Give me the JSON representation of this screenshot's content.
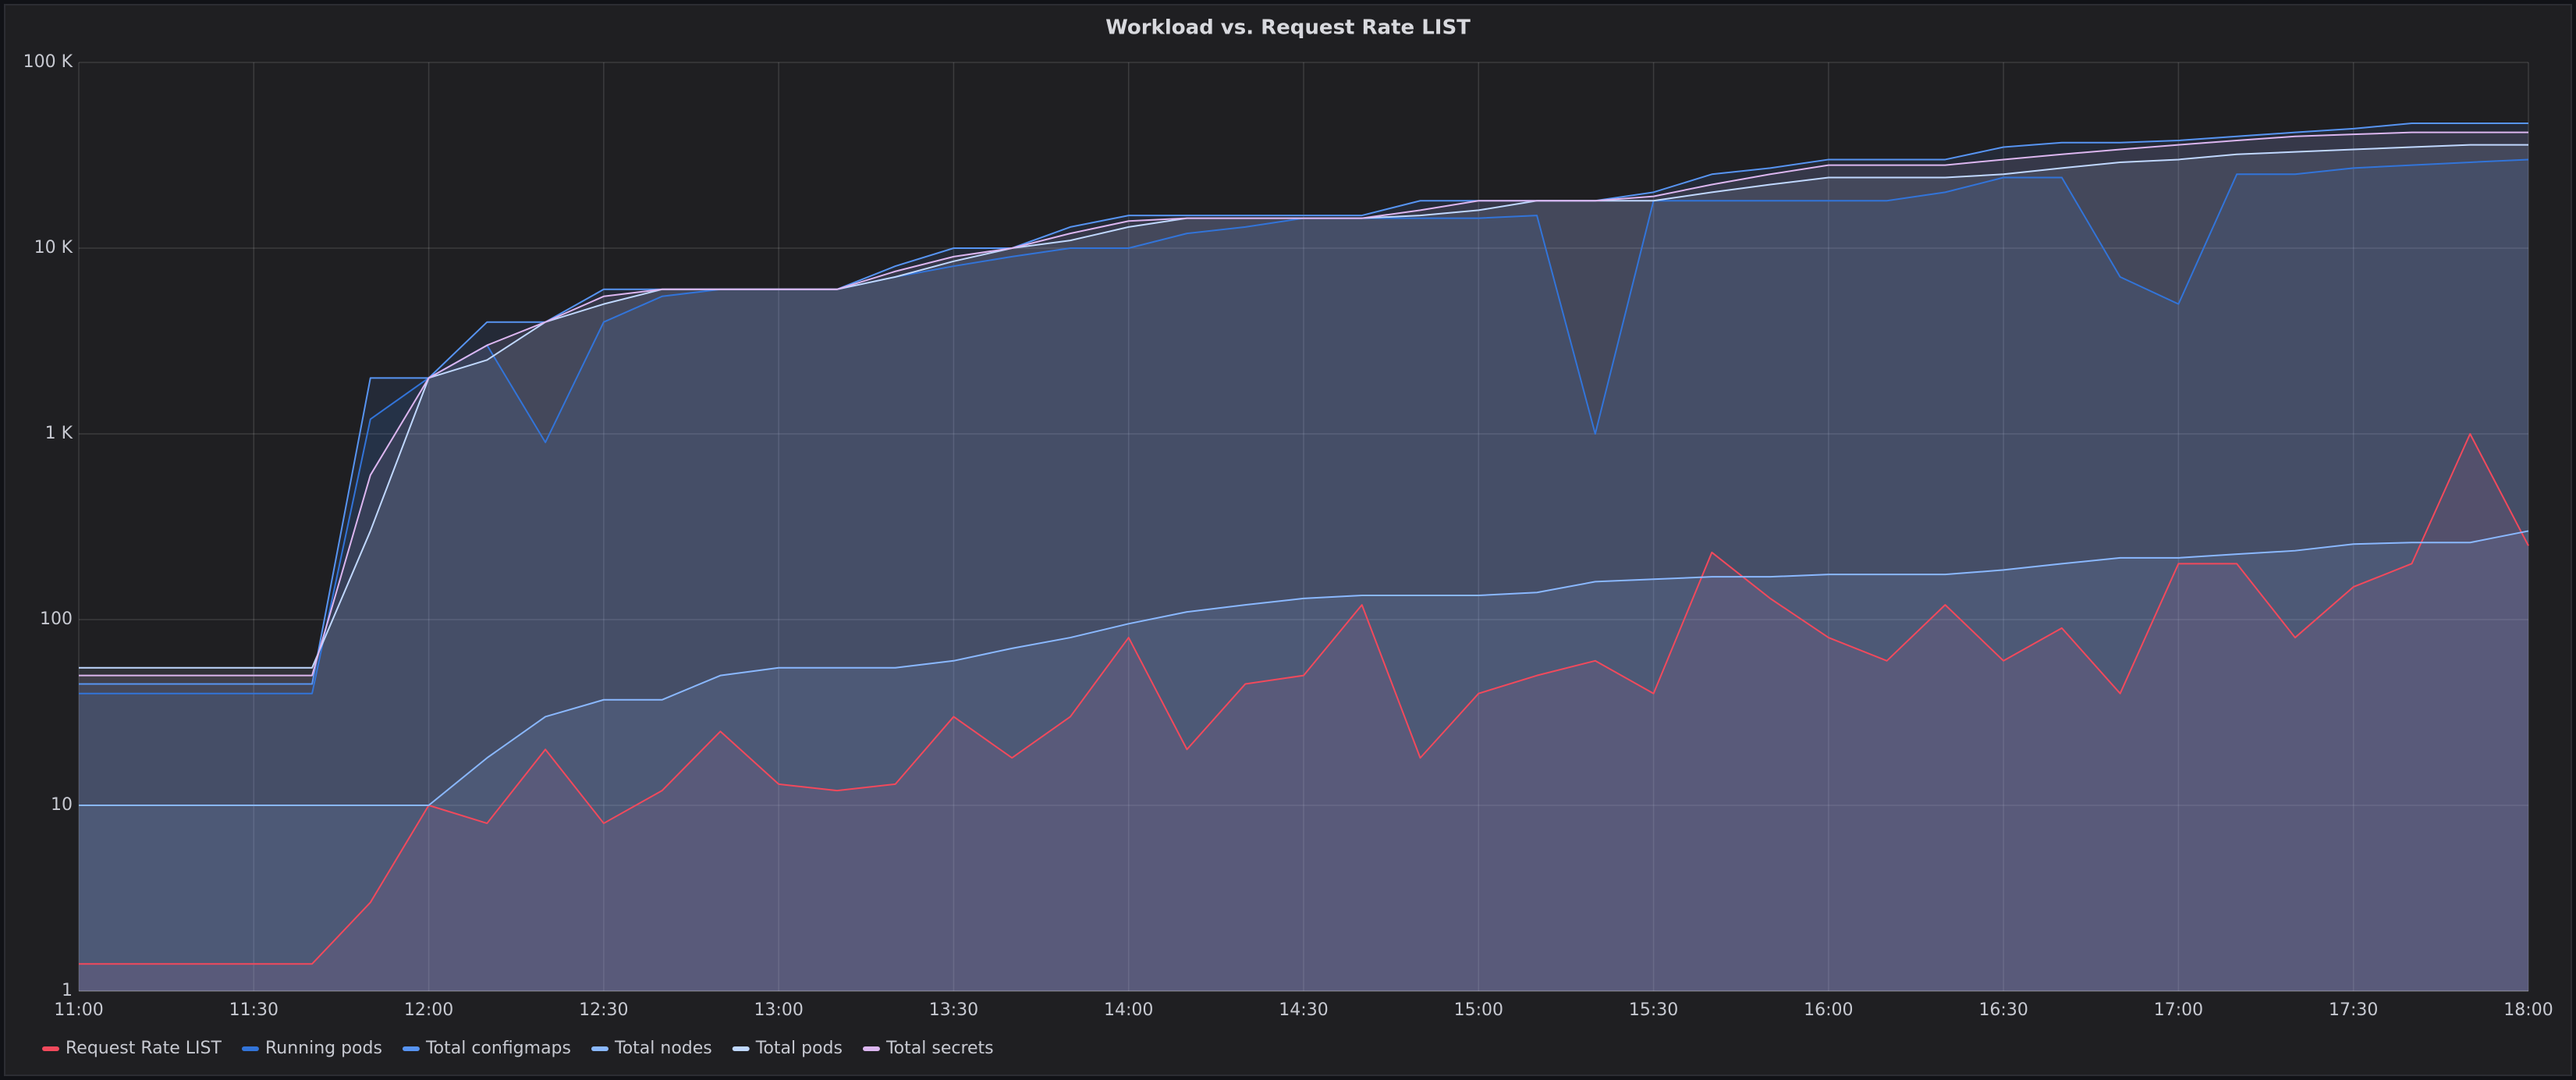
{
  "chart_data": {
    "type": "line",
    "title": "Workload vs. Request Rate LIST",
    "log_scale": true,
    "grid": true,
    "legend": "bottom",
    "x": [
      "11:00",
      "11:10",
      "11:20",
      "11:30",
      "11:40",
      "11:50",
      "12:00",
      "12:10",
      "12:20",
      "12:30",
      "12:40",
      "12:50",
      "13:00",
      "13:10",
      "13:20",
      "13:30",
      "13:40",
      "13:50",
      "14:00",
      "14:10",
      "14:20",
      "14:30",
      "14:40",
      "14:50",
      "15:00",
      "15:10",
      "15:20",
      "15:30",
      "15:40",
      "15:50",
      "16:00",
      "16:10",
      "16:20",
      "16:30",
      "16:40",
      "16:50",
      "17:00",
      "17:10",
      "17:20",
      "17:30",
      "17:40",
      "17:50",
      "18:00"
    ],
    "xlim": [
      "11:00",
      "18:00"
    ],
    "xticks": [
      "11:00",
      "11:30",
      "12:00",
      "12:30",
      "13:00",
      "13:30",
      "14:00",
      "14:30",
      "15:00",
      "15:30",
      "16:00",
      "16:30",
      "17:00",
      "17:30",
      "18:00"
    ],
    "ylim": [
      1,
      100000
    ],
    "yticks": [
      1,
      10,
      100,
      {
        "value": 1000,
        "label": "1 K"
      },
      {
        "value": 10000,
        "label": "10 K"
      },
      {
        "value": 100000,
        "label": "100 K"
      }
    ],
    "series": [
      {
        "name": "Request Rate LIST",
        "color": "#f2495c",
        "values": [
          1.4,
          1.4,
          1.4,
          1.4,
          1.4,
          3,
          10,
          8,
          20,
          8,
          12,
          25,
          13,
          12,
          13,
          30,
          18,
          30,
          80,
          20,
          45,
          50,
          120,
          18,
          40,
          50,
          60,
          40,
          230,
          130,
          80,
          60,
          120,
          60,
          90,
          40,
          200,
          200,
          80,
          150,
          200,
          1000,
          250
        ]
      },
      {
        "name": "Running pods",
        "color": "#3274d9",
        "values": [
          40,
          40,
          40,
          40,
          40,
          1200,
          2000,
          3000,
          900,
          4000,
          5500,
          6000,
          6000,
          6000,
          7000,
          8000,
          9000,
          10000,
          10000,
          12000,
          13000,
          14500,
          14500,
          14500,
          14500,
          15000,
          1000,
          18000,
          18000,
          18000,
          18000,
          18000,
          20000,
          24000,
          24000,
          7000,
          5000,
          25000,
          25000,
          27000,
          28000,
          29000,
          30000
        ]
      },
      {
        "name": "Total configmaps",
        "color": "#5794f2",
        "values": [
          45,
          45,
          45,
          45,
          45,
          2000,
          2000,
          4000,
          4000,
          6000,
          6000,
          6000,
          6000,
          6000,
          8000,
          10000,
          10000,
          13000,
          15000,
          15000,
          15000,
          15000,
          15000,
          18000,
          18000,
          18000,
          18000,
          20000,
          25000,
          27000,
          30000,
          30000,
          30000,
          35000,
          37000,
          37000,
          38000,
          40000,
          42000,
          44000,
          47000,
          47000,
          47000
        ]
      },
      {
        "name": "Total nodes",
        "color": "#8ab8ff",
        "values": [
          10,
          10,
          10,
          10,
          10,
          10,
          10,
          18,
          30,
          37,
          37,
          50,
          55,
          55,
          55,
          60,
          70,
          80,
          95,
          110,
          120,
          130,
          135,
          135,
          135,
          140,
          160,
          165,
          170,
          170,
          175,
          175,
          175,
          185,
          200,
          215,
          215,
          225,
          235,
          255,
          260,
          260,
          300
        ]
      },
      {
        "name": "Total pods",
        "color": "#c0d8ff",
        "values": [
          55,
          55,
          55,
          55,
          55,
          300,
          2000,
          2500,
          4000,
          5000,
          6000,
          6000,
          6000,
          6000,
          7000,
          8500,
          10000,
          11000,
          13000,
          14500,
          14500,
          14500,
          14500,
          15000,
          16000,
          18000,
          18000,
          18000,
          20000,
          22000,
          24000,
          24000,
          24000,
          25000,
          27000,
          29000,
          30000,
          32000,
          33000,
          34000,
          35000,
          36000,
          36000
        ]
      },
      {
        "name": "Total secrets",
        "color": "#dcb6f0",
        "values": [
          50,
          50,
          50,
          50,
          50,
          600,
          2000,
          3000,
          4000,
          5500,
          6000,
          6000,
          6000,
          6000,
          7500,
          9000,
          10000,
          12000,
          14000,
          14500,
          14500,
          14500,
          14500,
          16000,
          18000,
          18000,
          18000,
          19000,
          22000,
          25000,
          28000,
          28000,
          28000,
          30000,
          32000,
          34000,
          36000,
          38000,
          40000,
          41000,
          42000,
          42000,
          42000
        ]
      }
    ]
  }
}
